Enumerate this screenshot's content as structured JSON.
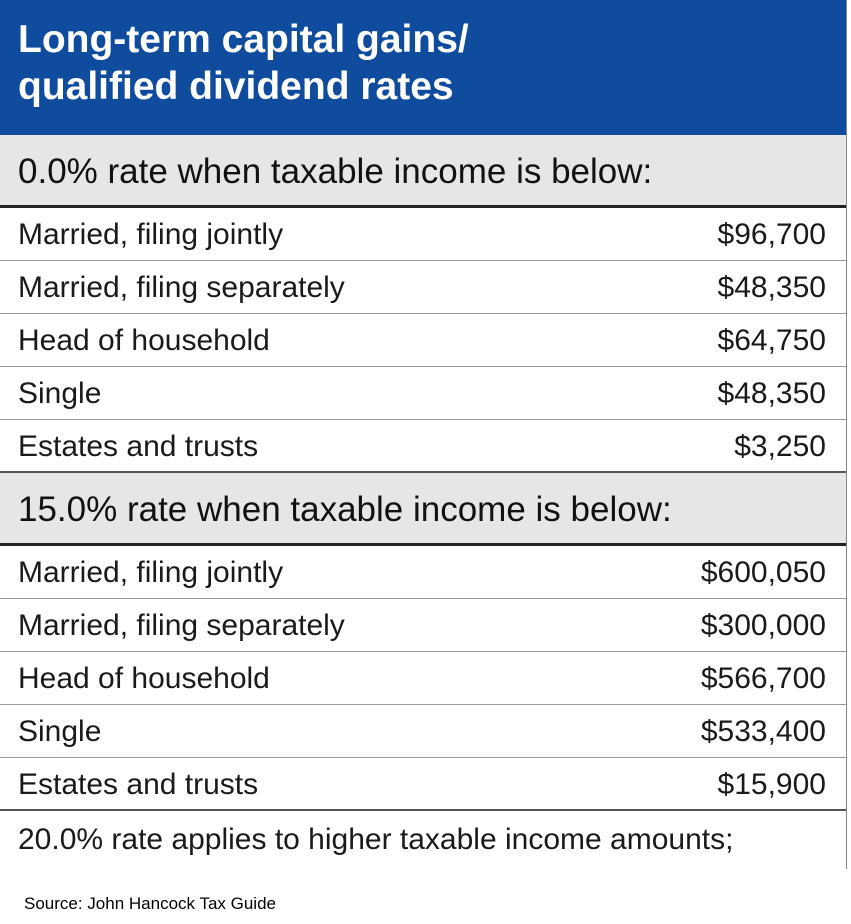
{
  "header": {
    "title_lines": [
      "Long-term capital gains/",
      "qualified dividend rates"
    ]
  },
  "sections": [
    {
      "heading": "0.0% rate when taxable income is below:",
      "rows": [
        [
          "Married, filing jointly",
          "$96,700"
        ],
        [
          "Married, filing separately",
          "$48,350"
        ],
        [
          "Head of household",
          "$64,750"
        ],
        [
          "Single",
          "$48,350"
        ],
        [
          "Estates and trusts",
          "$3,250"
        ]
      ]
    },
    {
      "heading": "15.0% rate when taxable income is below:",
      "rows": [
        [
          "Married, filing jointly",
          "$600,050"
        ],
        [
          "Married, filing separately",
          "$300,000"
        ],
        [
          "Head of household",
          "$566,700"
        ],
        [
          "Single",
          "$533,400"
        ],
        [
          "Estates and trusts",
          "$15,900"
        ]
      ]
    }
  ],
  "note": "20.0% rate applies to higher taxable income amounts;",
  "source": "Source: John Hancock Tax Guide"
}
